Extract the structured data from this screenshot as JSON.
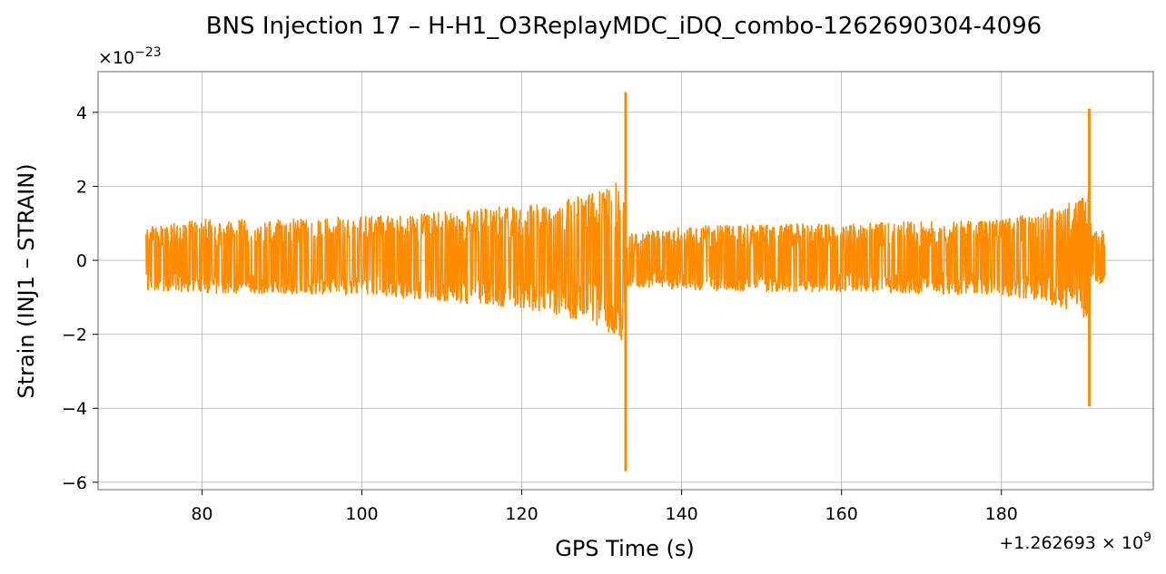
{
  "chart_data": {
    "type": "line",
    "title": "BNS Injection 17 – H-H1_O3ReplayMDC_iDQ_combo-1262690304-4096",
    "xlabel": "GPS Time (s)",
    "ylabel": "Strain (INJ1 – STRAIN)",
    "x_offset_label": "+1.262693×10^9",
    "y_scale_label": "×10^−23",
    "xlim": [
      67,
      199
    ],
    "ylim": [
      -6.2,
      5.1
    ],
    "x_ticks": [
      80,
      100,
      120,
      140,
      160,
      180
    ],
    "x_tick_labels": [
      "80",
      "100",
      "120",
      "140",
      "160",
      "180"
    ],
    "y_ticks": [
      -6,
      -4,
      -2,
      0,
      2,
      4
    ],
    "y_tick_labels": [
      "−6",
      "−4",
      "−2",
      "0",
      "2",
      "4"
    ],
    "grid": true,
    "line_color": "#ff8c00",
    "series": [
      {
        "x_start": 73,
        "x_end": 193,
        "envelope": [
          {
            "x": 73,
            "low": -0.8,
            "high": 0.9
          },
          {
            "x": 80,
            "low": -0.9,
            "high": 1.1
          },
          {
            "x": 90,
            "low": -0.9,
            "high": 1.1
          },
          {
            "x": 100,
            "low": -0.95,
            "high": 1.2
          },
          {
            "x": 110,
            "low": -1.1,
            "high": 1.3
          },
          {
            "x": 120,
            "low": -1.3,
            "high": 1.5
          },
          {
            "x": 125,
            "low": -1.5,
            "high": 1.6
          },
          {
            "x": 130,
            "low": -1.8,
            "high": 1.9
          },
          {
            "x": 132.5,
            "low": -2.2,
            "high": 2.2
          },
          {
            "x": 133.2,
            "low": -0.7,
            "high": 0.7
          },
          {
            "x": 140,
            "low": -0.8,
            "high": 0.9
          },
          {
            "x": 150,
            "low": -0.85,
            "high": 1.0
          },
          {
            "x": 160,
            "low": -0.85,
            "high": 1.0
          },
          {
            "x": 170,
            "low": -0.9,
            "high": 1.05
          },
          {
            "x": 180,
            "low": -0.95,
            "high": 1.1
          },
          {
            "x": 185,
            "low": -1.1,
            "high": 1.3
          },
          {
            "x": 190,
            "low": -1.5,
            "high": 1.7
          },
          {
            "x": 191,
            "low": -1.8,
            "high": 1.9
          },
          {
            "x": 191.3,
            "low": -0.7,
            "high": 0.8
          },
          {
            "x": 193,
            "low": -0.7,
            "high": 0.8
          }
        ],
        "peaks": [
          {
            "x": 133.0,
            "min": -5.7,
            "max": 4.55
          },
          {
            "x": 191.0,
            "min": -3.95,
            "max": 4.1
          }
        ]
      }
    ]
  }
}
